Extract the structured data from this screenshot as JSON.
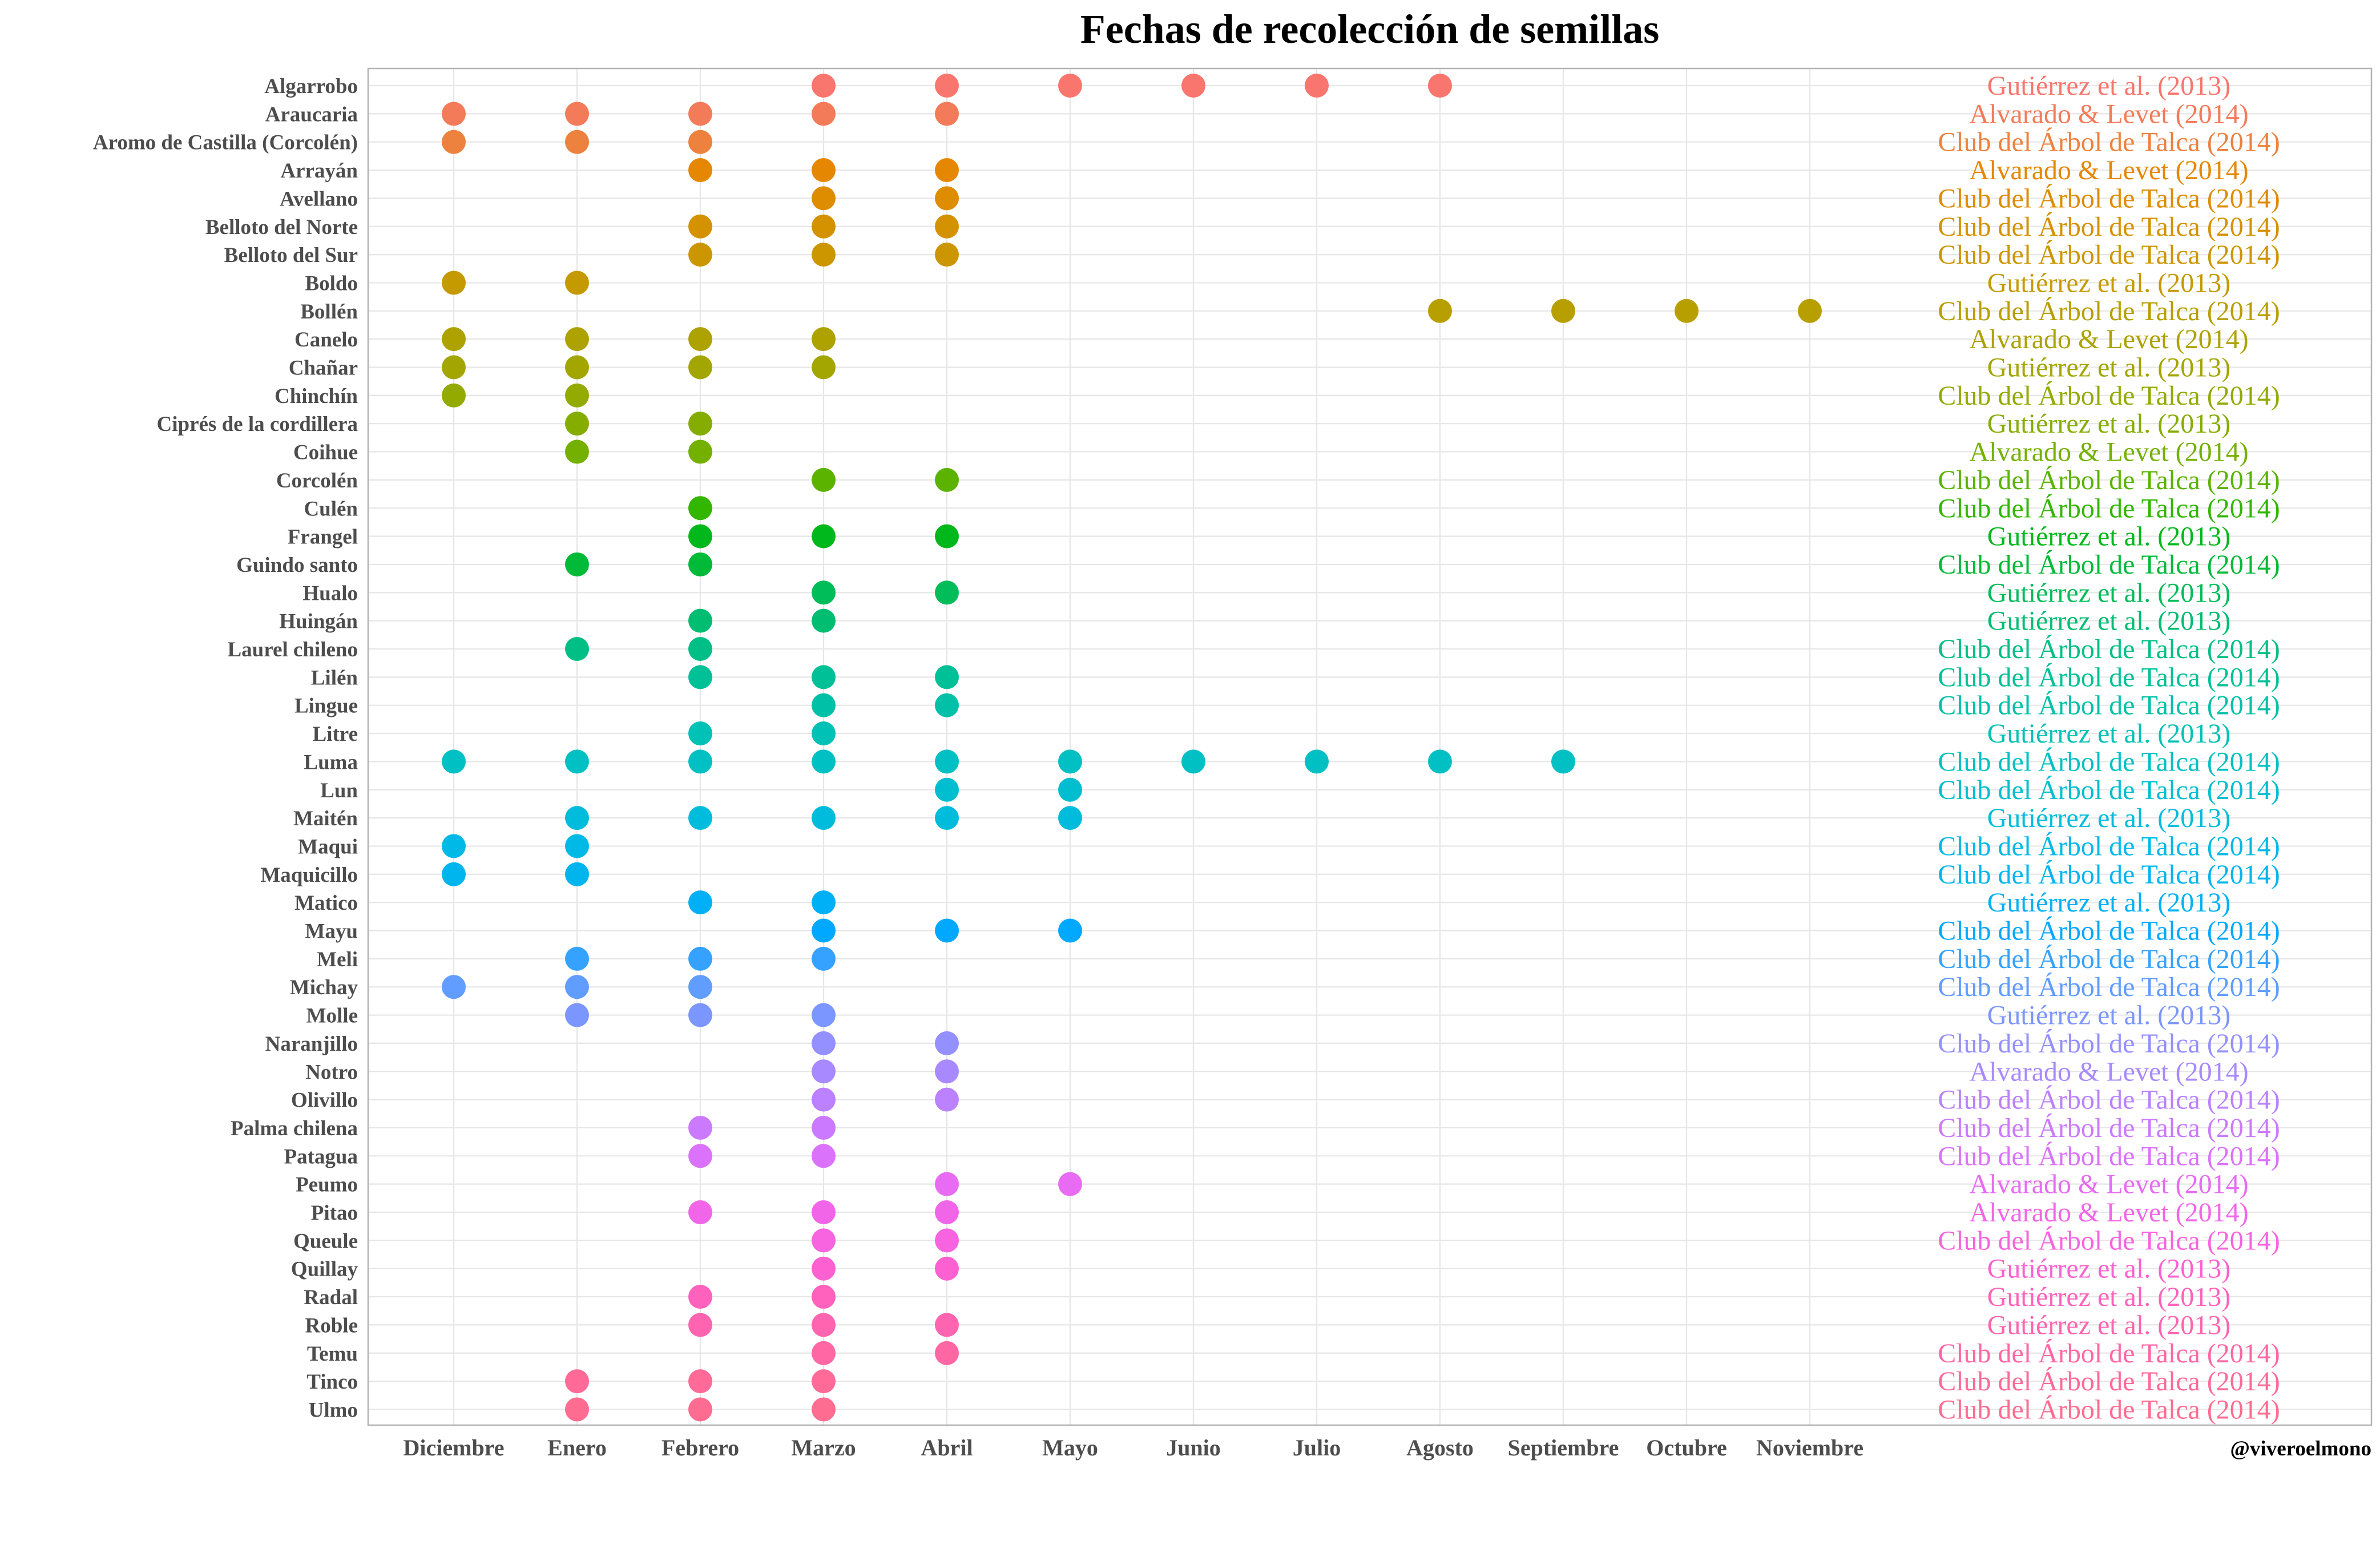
{
  "chart_data": {
    "type": "scatter",
    "title": "Fechas de recolección de semillas",
    "xlabel": "",
    "ylabel": "",
    "credit": "@viveroelmono",
    "grid": true,
    "legend": "none",
    "x_categories": [
      "Diciembre",
      "Enero",
      "Febrero",
      "Marzo",
      "Abril",
      "Mayo",
      "Junio",
      "Julio",
      "Agosto",
      "Septiembre",
      "Octubre",
      "Noviembre"
    ],
    "species": [
      {
        "name": "Algarrobo",
        "color": "#F8766D",
        "source": "Gutiérrez et al. (2013)",
        "months": [
          "Marzo",
          "Abril",
          "Mayo",
          "Junio",
          "Julio",
          "Agosto"
        ]
      },
      {
        "name": "Araucaria",
        "color": "#F37B59",
        "source": "Alvarado & Levet (2014)",
        "months": [
          "Diciembre",
          "Enero",
          "Febrero",
          "Marzo",
          "Abril"
        ]
      },
      {
        "name": "Aromo de Castilla (Corcolén)",
        "color": "#ED813E",
        "source": "Club del Árbol de Talca (2014)",
        "months": [
          "Diciembre",
          "Enero",
          "Febrero"
        ]
      },
      {
        "name": "Arrayán",
        "color": "#E58700",
        "source": "Alvarado & Levet (2014)",
        "months": [
          "Febrero",
          "Marzo",
          "Abril"
        ]
      },
      {
        "name": "Avellano",
        "color": "#DE8C00",
        "source": "Club del Árbol de Talca (2014)",
        "months": [
          "Marzo",
          "Abril"
        ]
      },
      {
        "name": "Belloto del Norte",
        "color": "#D49200",
        "source": "Club del Árbol de Talca (2014)",
        "months": [
          "Febrero",
          "Marzo",
          "Abril"
        ]
      },
      {
        "name": "Belloto del Sur",
        "color": "#CC9600",
        "source": "Club del Árbol de Talca (2014)",
        "months": [
          "Febrero",
          "Marzo",
          "Abril"
        ]
      },
      {
        "name": "Boldo",
        "color": "#C59A00",
        "source": "Gutiérrez et al. (2013)",
        "months": [
          "Diciembre",
          "Enero"
        ]
      },
      {
        "name": "Bollén",
        "color": "#B89F00",
        "source": "Club del Árbol de Talca (2014)",
        "months": [
          "Agosto",
          "Septiembre",
          "Octubre",
          "Noviembre"
        ]
      },
      {
        "name": "Canelo",
        "color": "#ADA200",
        "source": "Alvarado & Levet (2014)",
        "months": [
          "Diciembre",
          "Enero",
          "Febrero",
          "Marzo"
        ]
      },
      {
        "name": "Chañar",
        "color": "#A3A500",
        "source": "Gutiérrez et al. (2013)",
        "months": [
          "Diciembre",
          "Enero",
          "Febrero",
          "Marzo"
        ]
      },
      {
        "name": "Chinchín",
        "color": "#93AA00",
        "source": "Club del Árbol de Talca (2014)",
        "months": [
          "Diciembre",
          "Enero"
        ]
      },
      {
        "name": "Ciprés de la cordillera",
        "color": "#85AD00",
        "source": "Gutiérrez et al. (2013)",
        "months": [
          "Enero",
          "Febrero"
        ]
      },
      {
        "name": "Coihue",
        "color": "#74B000",
        "source": "Alvarado & Levet (2014)",
        "months": [
          "Enero",
          "Febrero"
        ]
      },
      {
        "name": "Corcolén",
        "color": "#5BB300",
        "source": "Club del Árbol de Talca (2014)",
        "months": [
          "Marzo",
          "Abril"
        ]
      },
      {
        "name": "Culén",
        "color": "#32B600",
        "source": "Club del Árbol de Talca (2014)",
        "months": [
          "Febrero"
        ]
      },
      {
        "name": "Frangel",
        "color": "#00B81B",
        "source": "Gutiérrez et al. (2013)",
        "months": [
          "Febrero",
          "Marzo",
          "Abril"
        ]
      },
      {
        "name": "Guindo santo",
        "color": "#00BA38",
        "source": "Club del Árbol de Talca (2014)",
        "months": [
          "Enero",
          "Febrero"
        ]
      },
      {
        "name": "Hualo",
        "color": "#00BC59",
        "source": "Gutiérrez et al. (2013)",
        "months": [
          "Marzo",
          "Abril"
        ]
      },
      {
        "name": "Huingán",
        "color": "#00BD72",
        "source": "Gutiérrez et al. (2013)",
        "months": [
          "Febrero",
          "Marzo"
        ]
      },
      {
        "name": "Laurel chileno",
        "color": "#00BF86",
        "source": "Club del Árbol de Talca (2014)",
        "months": [
          "Enero",
          "Febrero"
        ]
      },
      {
        "name": "Lilén",
        "color": "#00C097",
        "source": "Club del Árbol de Talca (2014)",
        "months": [
          "Febrero",
          "Marzo",
          "Abril"
        ]
      },
      {
        "name": "Lingue",
        "color": "#00C0A7",
        "source": "Club del Árbol de Talca (2014)",
        "months": [
          "Marzo",
          "Abril"
        ]
      },
      {
        "name": "Litre",
        "color": "#00C1B6",
        "source": "Gutiérrez et al. (2013)",
        "months": [
          "Febrero",
          "Marzo"
        ]
      },
      {
        "name": "Luma",
        "color": "#00C0C4",
        "source": "Club del Árbol de Talca (2014)",
        "months": [
          "Diciembre",
          "Enero",
          "Febrero",
          "Marzo",
          "Abril",
          "Mayo",
          "Junio",
          "Julio",
          "Agosto",
          "Septiembre"
        ]
      },
      {
        "name": "Lun",
        "color": "#00BECF",
        "source": "Club del Árbol de Talca (2014)",
        "months": [
          "Abril",
          "Mayo"
        ]
      },
      {
        "name": "Maitén",
        "color": "#00BCDC",
        "source": "Gutiérrez et al. (2013)",
        "months": [
          "Enero",
          "Febrero",
          "Marzo",
          "Abril",
          "Mayo"
        ]
      },
      {
        "name": "Maqui",
        "color": "#00B9E6",
        "source": "Club del Árbol de Talca (2014)",
        "months": [
          "Diciembre",
          "Enero"
        ]
      },
      {
        "name": "Maquicillo",
        "color": "#00B5EE",
        "source": "Club del Árbol de Talca (2014)",
        "months": [
          "Diciembre",
          "Enero"
        ]
      },
      {
        "name": "Matico",
        "color": "#00B0F6",
        "source": "Gutiérrez et al. (2013)",
        "months": [
          "Febrero",
          "Marzo"
        ]
      },
      {
        "name": "Mayu",
        "color": "#00A8FF",
        "source": "Club del Árbol de Talca (2014)",
        "months": [
          "Marzo",
          "Abril",
          "Mayo"
        ]
      },
      {
        "name": "Meli",
        "color": "#35A2FF",
        "source": "Club del Árbol de Talca (2014)",
        "months": [
          "Enero",
          "Febrero",
          "Marzo"
        ]
      },
      {
        "name": "Michay",
        "color": "#619CFF",
        "source": "Club del Árbol de Talca (2014)",
        "months": [
          "Diciembre",
          "Enero",
          "Febrero"
        ]
      },
      {
        "name": "Molle",
        "color": "#7C96FF",
        "source": "Gutiérrez et al. (2013)",
        "months": [
          "Enero",
          "Febrero",
          "Marzo"
        ]
      },
      {
        "name": "Naranjillo",
        "color": "#9590FF",
        "source": "Club del Árbol de Talca (2014)",
        "months": [
          "Marzo",
          "Abril"
        ]
      },
      {
        "name": "Notro",
        "color": "#A989FF",
        "source": "Alvarado & Levet (2014)",
        "months": [
          "Marzo",
          "Abril"
        ]
      },
      {
        "name": "Olivillo",
        "color": "#BB81FF",
        "source": "Club del Árbol de Talca (2014)",
        "months": [
          "Marzo",
          "Abril"
        ]
      },
      {
        "name": "Palma chilena",
        "color": "#CB7AFF",
        "source": "Club del Árbol de Talca (2014)",
        "months": [
          "Febrero",
          "Marzo"
        ]
      },
      {
        "name": "Patagua",
        "color": "#DB72FB",
        "source": "Club del Árbol de Talca (2014)",
        "months": [
          "Febrero",
          "Marzo"
        ]
      },
      {
        "name": "Peumo",
        "color": "#E76BF3",
        "source": "Alvarado & Levet (2014)",
        "months": [
          "Abril",
          "Mayo"
        ]
      },
      {
        "name": "Pitao",
        "color": "#F166E8",
        "source": "Alvarado & Levet (2014)",
        "months": [
          "Febrero",
          "Marzo",
          "Abril"
        ]
      },
      {
        "name": "Queule",
        "color": "#F863DF",
        "source": "Club del Árbol de Talca (2014)",
        "months": [
          "Marzo",
          "Abril"
        ]
      },
      {
        "name": "Quillay",
        "color": "#FD61D1",
        "source": "Gutiérrez et al. (2013)",
        "months": [
          "Marzo",
          "Abril"
        ]
      },
      {
        "name": "Radal",
        "color": "#FF62BC",
        "source": "Gutiérrez et al. (2013)",
        "months": [
          "Febrero",
          "Marzo"
        ]
      },
      {
        "name": "Roble",
        "color": "#FF64B0",
        "source": "Gutiérrez et al. (2013)",
        "months": [
          "Febrero",
          "Marzo",
          "Abril"
        ]
      },
      {
        "name": "Temu",
        "color": "#FF67A4",
        "source": "Club del Árbol de Talca (2014)",
        "months": [
          "Marzo",
          "Abril"
        ]
      },
      {
        "name": "Tinco",
        "color": "#FF6A98",
        "source": "Club del Árbol de Talca (2014)",
        "months": [
          "Enero",
          "Febrero",
          "Marzo"
        ]
      },
      {
        "name": "Ulmo",
        "color": "#FF6C91",
        "source": "Club del Árbol de Talca (2014)",
        "months": [
          "Enero",
          "Febrero",
          "Marzo"
        ]
      }
    ]
  }
}
